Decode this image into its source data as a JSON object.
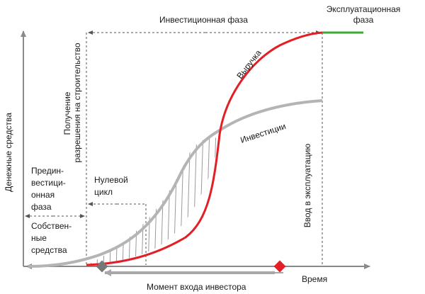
{
  "labels": {
    "investment_phase": "Инвестиционная фаза",
    "operation_phase_line1": "Эксплуатационная",
    "operation_phase_line2": "фаза",
    "permit_line1": "Получение",
    "permit_line2": "разрешения на строительство",
    "y_axis": "Денежные средства",
    "pre_investment_line1": "Предин-",
    "pre_investment_line2": "вестици-",
    "pre_investment_line3": "онная",
    "pre_investment_line4": "фаза",
    "own_funds_line1": "Собствен-",
    "own_funds_line2": "ные",
    "own_funds_line3": "средства",
    "zero_cycle_line1": "Нулевой",
    "zero_cycle_line2": "цикл",
    "revenue": "Выручка",
    "investments": "Инвестиции",
    "commissioning": "Ввод в эксплуатацию",
    "time_axis": "Время",
    "investor_entry": "Момент входа инвестора"
  },
  "colors": {
    "axis": "#8a8a8a",
    "revenue": "#e31e24",
    "investments": "#b4b4b4",
    "operation_line": "#3aaa35",
    "investor_marker": "#777777",
    "entry_marker": "#e31e24",
    "hatch": "#9a9a9a"
  }
}
